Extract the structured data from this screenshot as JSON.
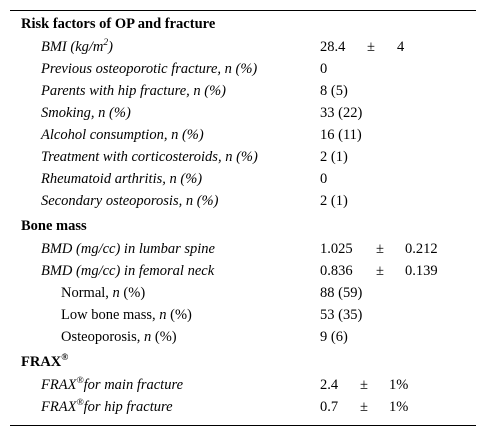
{
  "sections": {
    "risk": {
      "title": "Risk factors of OP and fracture"
    },
    "bone": {
      "title": "Bone mass"
    },
    "frax": {
      "title": "FRAX",
      "sup": "®"
    }
  },
  "rows": {
    "bmi": {
      "label": "BMI (kg/m",
      "label_sup": "2",
      "label_end": ")",
      "mean": "28.4",
      "pm": "±",
      "sd": "4"
    },
    "prev_fracture": {
      "label": "Previous osteoporotic fracture, n (%)",
      "value": "0"
    },
    "parents_hip": {
      "label": "Parents with hip fracture, n (%)",
      "value": "8 (5)"
    },
    "smoking": {
      "label": "Smoking, n (%)",
      "value": "33 (22)"
    },
    "alcohol": {
      "label": "Alcohol consumption, n (%)",
      "value": "16 (11)"
    },
    "corticosteroids": {
      "label": "Treatment with corticosteroids, n (%)",
      "value": "2 (1)"
    },
    "rheumatoid": {
      "label": "Rheumatoid arthritis, n (%)",
      "value": "0"
    },
    "secondary_op": {
      "label": "Secondary osteoporosis, n (%)",
      "value": "2 (1)"
    },
    "bmd_lumbar": {
      "label": "BMD (mg/cc) in lumbar spine",
      "mean": "1.025",
      "pm": "±",
      "sd": "0.212"
    },
    "bmd_femoral": {
      "label": "BMD (mg/cc) in femoral neck",
      "mean": "0.836",
      "pm": "±",
      "sd": "0.139"
    },
    "normal": {
      "label": "Normal, ",
      "label_it": "n",
      "label_end": " (%)",
      "value": "88 (59)"
    },
    "low_bone": {
      "label": "Low bone mass, ",
      "label_it": "n",
      "label_end": " (%)",
      "value": "53 (35)"
    },
    "osteoporosis": {
      "label": "Osteoporosis, ",
      "label_it": "n",
      "label_end": " (%)",
      "value": "9 (6)"
    },
    "frax_main": {
      "label_a": "FRAX",
      "label_sup": "®",
      "label_b": "for main fracture",
      "mean": "2.4",
      "pm": "±",
      "sd": "1%"
    },
    "frax_hip": {
      "label_a": "FRAX",
      "label_sup": "®",
      "label_b": "for hip fracture",
      "mean": "0.7",
      "pm": "±",
      "sd": "1%"
    }
  }
}
